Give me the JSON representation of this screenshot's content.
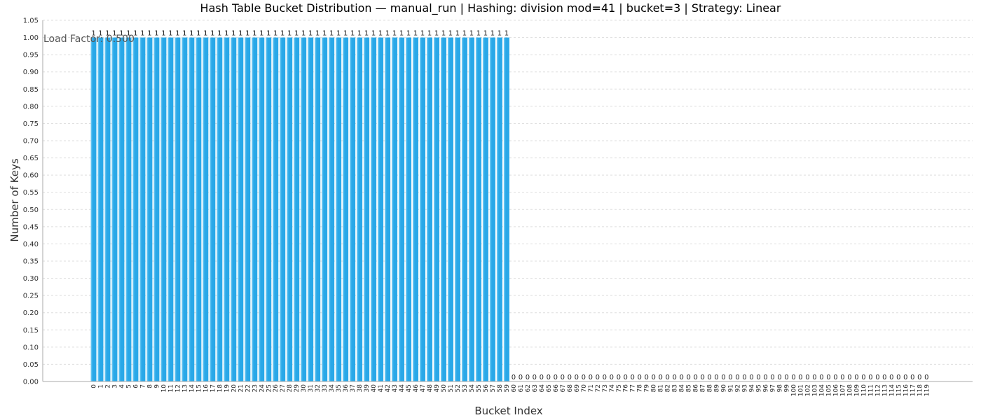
{
  "chart_data": {
    "type": "bar",
    "title": "Hash Table Bucket Distribution — manual_run | Hashing: division mod=41 | bucket=3 | Strategy: Linear",
    "xlabel": "Bucket Index",
    "ylabel": "Number of Keys",
    "ylim": [
      0,
      1.05
    ],
    "yticks": [
      "0.00",
      "0.05",
      "0.10",
      "0.15",
      "0.20",
      "0.25",
      "0.30",
      "0.35",
      "0.40",
      "0.45",
      "0.50",
      "0.55",
      "0.60",
      "0.65",
      "0.70",
      "0.75",
      "0.80",
      "0.85",
      "0.90",
      "0.95",
      "1.00",
      "1.05"
    ],
    "grid": true,
    "annotation": "Load Factor: 0.500",
    "categories": [
      "0",
      "1",
      "2",
      "3",
      "4",
      "5",
      "6",
      "7",
      "8",
      "9",
      "10",
      "11",
      "12",
      "13",
      "14",
      "15",
      "16",
      "17",
      "18",
      "19",
      "20",
      "21",
      "22",
      "23",
      "24",
      "25",
      "26",
      "27",
      "28",
      "29",
      "30",
      "31",
      "32",
      "33",
      "34",
      "35",
      "36",
      "37",
      "38",
      "39",
      "40",
      "41",
      "42",
      "43",
      "44",
      "45",
      "46",
      "47",
      "48",
      "49",
      "50",
      "51",
      "52",
      "53",
      "54",
      "55",
      "56",
      "57",
      "58",
      "59",
      "60",
      "61",
      "62",
      "63",
      "64",
      "65",
      "66",
      "67",
      "68",
      "69",
      "70",
      "71",
      "72",
      "73",
      "74",
      "75",
      "76",
      "77",
      "78",
      "79",
      "80",
      "81",
      "82",
      "83",
      "84",
      "85",
      "86",
      "87",
      "88",
      "89",
      "90",
      "91",
      "92",
      "93",
      "94",
      "95",
      "96",
      "97",
      "98",
      "99",
      "100",
      "101",
      "102",
      "103",
      "104",
      "105",
      "106",
      "107",
      "108",
      "109",
      "110",
      "111",
      "112",
      "113",
      "114",
      "115",
      "116",
      "117",
      "118",
      "119"
    ],
    "values": [
      1,
      1,
      1,
      1,
      1,
      1,
      1,
      1,
      1,
      1,
      1,
      1,
      1,
      1,
      1,
      1,
      1,
      1,
      1,
      1,
      1,
      1,
      1,
      1,
      1,
      1,
      1,
      1,
      1,
      1,
      1,
      1,
      1,
      1,
      1,
      1,
      1,
      1,
      1,
      1,
      1,
      1,
      1,
      1,
      1,
      1,
      1,
      1,
      1,
      1,
      1,
      1,
      1,
      1,
      1,
      1,
      1,
      1,
      1,
      1,
      0,
      0,
      0,
      0,
      0,
      0,
      0,
      0,
      0,
      0,
      0,
      0,
      0,
      0,
      0,
      0,
      0,
      0,
      0,
      0,
      0,
      0,
      0,
      0,
      0,
      0,
      0,
      0,
      0,
      0,
      0,
      0,
      0,
      0,
      0,
      0,
      0,
      0,
      0,
      0,
      0,
      0,
      0,
      0,
      0,
      0,
      0,
      0,
      0,
      0,
      0,
      0,
      0,
      0,
      0,
      0,
      0,
      0,
      0,
      0
    ],
    "colors": {
      "bar": "#29a8e8",
      "bar_light": "#7fd0f5",
      "grid": "#dddddd",
      "axis": "#aaaaaa"
    }
  }
}
